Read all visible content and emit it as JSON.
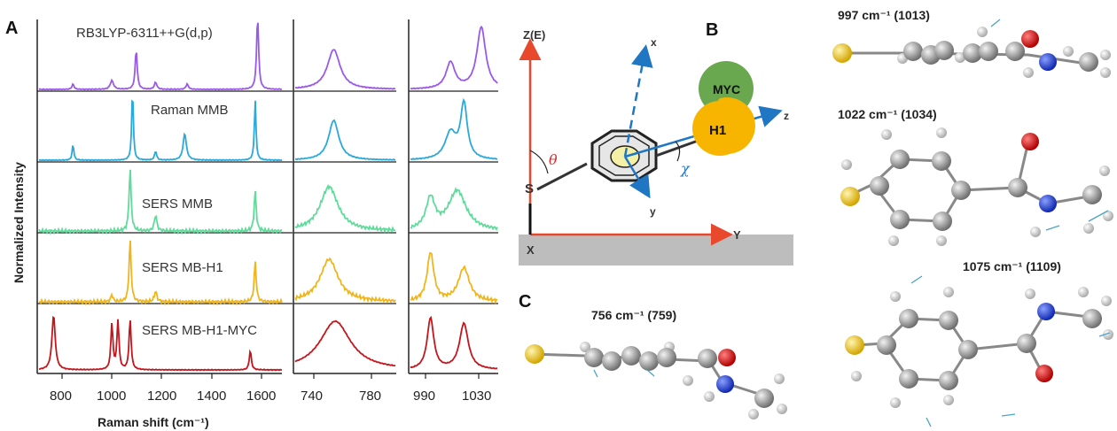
{
  "panel_a": {
    "label": "A",
    "ylabel": "Normalized Intensity",
    "xlabel": "Raman shift (cm⁻¹)",
    "main_ticks": [
      "800",
      "1000",
      "1200",
      "1400",
      "1600"
    ],
    "zoom1_ticks": [
      "740",
      "780"
    ],
    "zoom2_ticks": [
      "990",
      "1030"
    ],
    "traces": [
      {
        "name": "RB3LYP-6311++G(d,p)",
        "color": "#9b59ea"
      },
      {
        "name": "Raman MMB",
        "color": "#29a9dc"
      },
      {
        "name": "SERS MMB",
        "color": "#5fdb9a"
      },
      {
        "name": "SERS MB-H1",
        "color": "#f1b51c"
      },
      {
        "name": "SERS MB-H1-MYC",
        "color": "#c4161c"
      }
    ]
  },
  "panel_b": {
    "label": "B",
    "z_axis": "Z(E)",
    "x_axis": "X",
    "y_axis": "Y",
    "mol_x": "x",
    "mol_y": "y",
    "mol_z": "z",
    "sulfur": "S",
    "theta": "θ",
    "chi": "χ",
    "h1": "H1",
    "myc": "MYC"
  },
  "panel_c": {
    "label": "C",
    "modes": [
      {
        "label": "997 cm⁻¹ (1013)"
      },
      {
        "label": "1022 cm⁻¹ (1034)"
      },
      {
        "label": "1075 cm⁻¹ (1109)"
      },
      {
        "label": "756 cm⁻¹ (759)"
      }
    ]
  },
  "colors": {
    "axis_red": "#e8482c",
    "arrow_blue": "#1f77c4",
    "h1_orange": "#f7b500",
    "myc_green": "#6aa84f",
    "substrate_gray": "#bdbdbd",
    "sulfur_yellow": "#f2c40f",
    "oxygen_red": "#d40000",
    "nitrogen_blue": "#1a3fd6",
    "carbon_gray": "#8c8c8c"
  }
}
